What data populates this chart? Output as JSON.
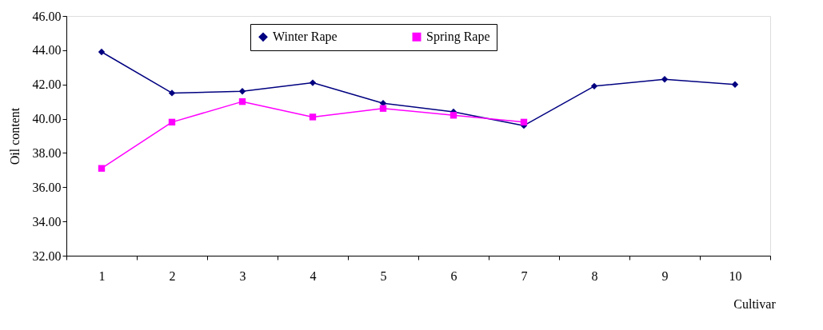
{
  "chart_data": {
    "type": "line",
    "xlabel": "Cultivar",
    "ylabel": "Oil content",
    "categories": [
      "1",
      "2",
      "3",
      "4",
      "5",
      "6",
      "7",
      "8",
      "9",
      "10"
    ],
    "series": [
      {
        "name": "Winter Rape",
        "color": "#000080",
        "marker": "diamond",
        "values": [
          43.9,
          41.5,
          41.6,
          42.1,
          40.9,
          40.4,
          39.6,
          41.9,
          42.3,
          42.0
        ]
      },
      {
        "name": "Spring Rape",
        "color": "#ff00ff",
        "marker": "square",
        "values": [
          37.1,
          39.8,
          41.0,
          40.1,
          40.6,
          40.2,
          39.8,
          null,
          null,
          null
        ]
      }
    ],
    "ylim": [
      32,
      46
    ],
    "yticks": [
      {
        "value": 32,
        "label": "32.00"
      },
      {
        "value": 34,
        "label": "34.00"
      },
      {
        "value": 36,
        "label": "36.00"
      },
      {
        "value": 38,
        "label": "38.00"
      },
      {
        "value": 40,
        "label": "40.00"
      },
      {
        "value": 42,
        "label": "42.00"
      },
      {
        "value": 44,
        "label": "44.00"
      },
      {
        "value": 46,
        "label": "46.00"
      }
    ],
    "grid": false,
    "legend": "top",
    "line_style": "solid"
  }
}
